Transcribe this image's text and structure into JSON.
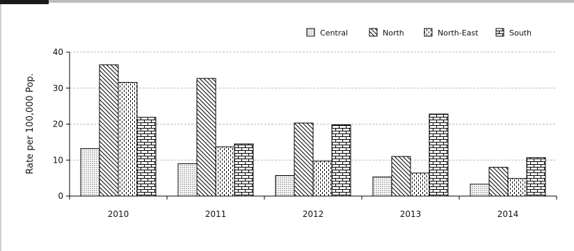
{
  "chart_data": {
    "type": "bar",
    "title": "",
    "xlabel": "",
    "ylabel": "Rate per 100,000 Pop.",
    "ylim": [
      0,
      40
    ],
    "yticks": [
      0,
      10,
      20,
      30,
      40
    ],
    "grid": true,
    "legend_position": "top-right",
    "categories": [
      "2010",
      "2011",
      "2012",
      "2013",
      "2014"
    ],
    "series": [
      {
        "name": "Central",
        "pattern": "dots",
        "values": [
          13.2,
          9.0,
          5.7,
          5.3,
          3.3
        ]
      },
      {
        "name": "North",
        "pattern": "diagonal",
        "values": [
          36.5,
          32.7,
          20.3,
          11.0,
          8.0
        ]
      },
      {
        "name": "North-East",
        "pattern": "dashes",
        "values": [
          31.6,
          13.7,
          9.7,
          6.4,
          4.9
        ]
      },
      {
        "name": "South",
        "pattern": "bricks",
        "values": [
          21.9,
          14.5,
          19.8,
          22.8,
          10.7
        ]
      }
    ]
  }
}
